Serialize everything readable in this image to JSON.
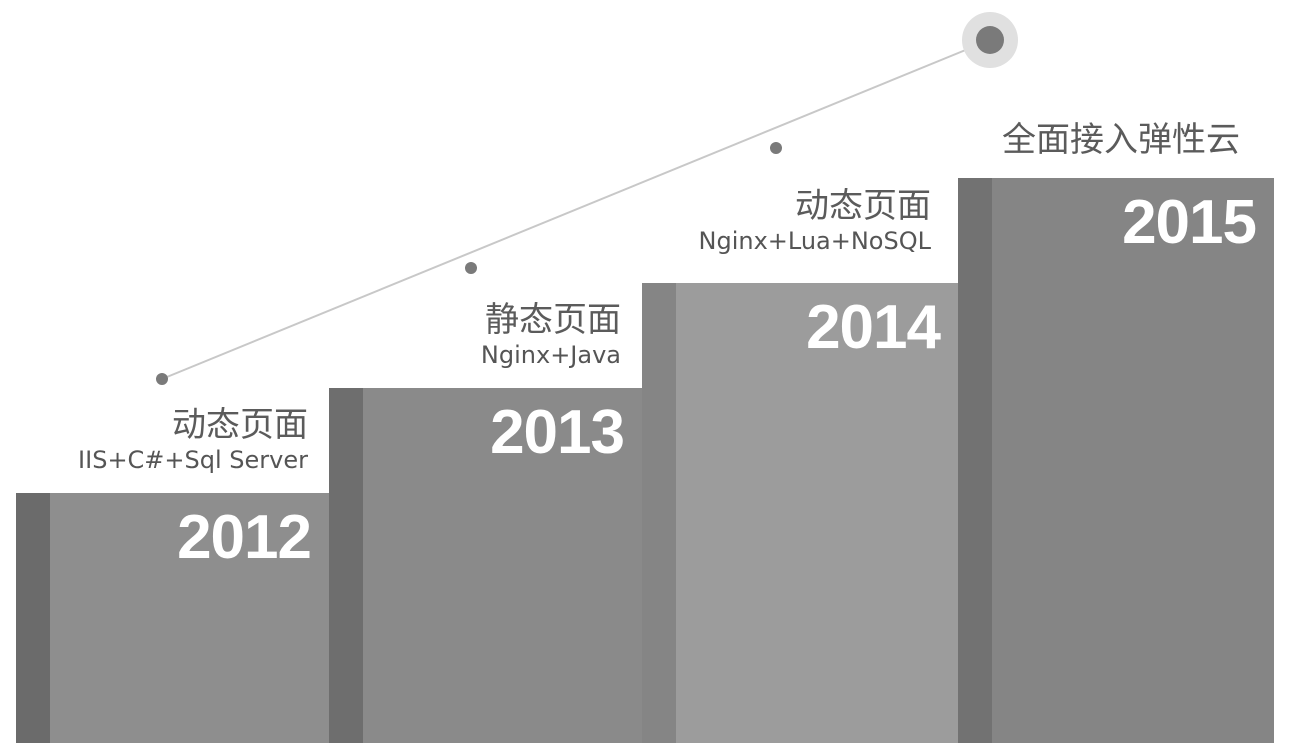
{
  "steps": [
    {
      "year": "2012",
      "title": "动态页面",
      "subtitle": "IIS+C#+Sql Server"
    },
    {
      "year": "2013",
      "title": "静态页面",
      "subtitle": "Nginx+Java"
    },
    {
      "year": "2014",
      "title": "动态页面",
      "subtitle": "Nginx+Lua+NoSQL"
    },
    {
      "year": "2015",
      "title": "全面接入弹性云",
      "subtitle": ""
    }
  ],
  "colors": {
    "text": "#5b5b5b",
    "year_text": "#ffffff",
    "trend_line": "#c8c8c8",
    "trend_dot": "#7a7a7a",
    "trend_end_halo": "#e0e0e0"
  }
}
